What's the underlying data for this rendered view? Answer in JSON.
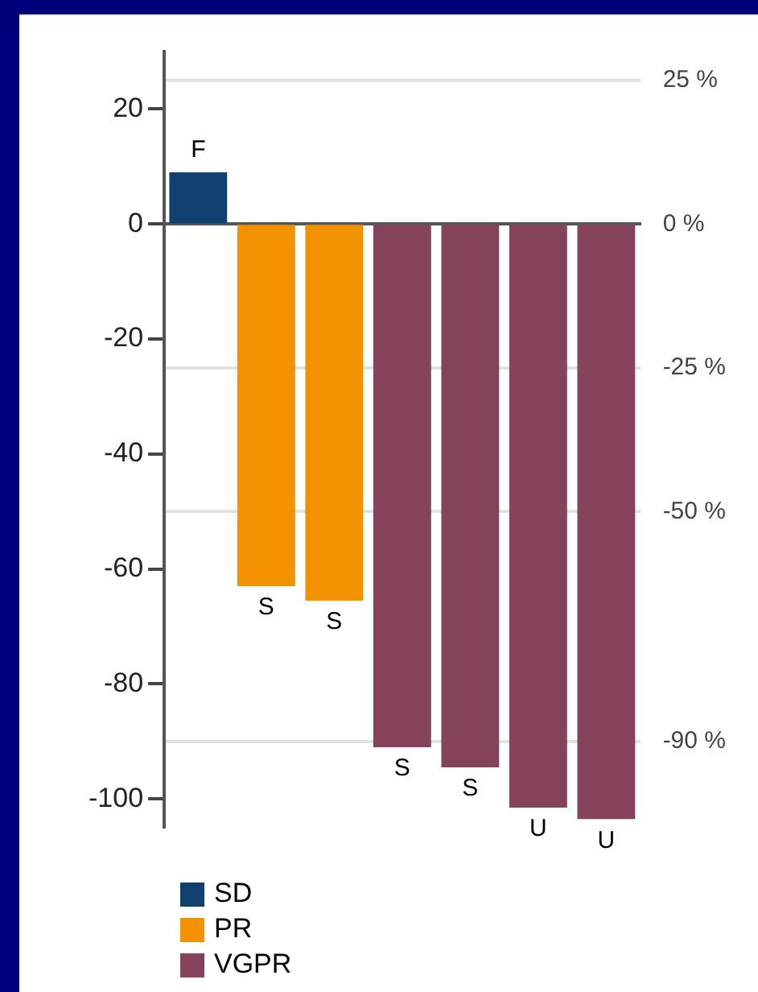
{
  "chart_data": {
    "type": "bar",
    "categories": [
      null,
      null,
      null,
      null,
      null,
      null,
      null
    ],
    "stacked": true,
    "series": [
      {
        "name": "SD",
        "color": "#0f406f",
        "values": [
          9,
          null,
          null,
          null,
          null,
          null,
          null
        ],
        "value_labels": [
          "F",
          null,
          null,
          null,
          null,
          null,
          null
        ]
      },
      {
        "name": "PR",
        "color": "#f39200",
        "values": [
          null,
          -63,
          -65.5,
          null,
          null,
          null,
          null
        ],
        "value_labels": [
          null,
          "S",
          "S",
          null,
          null,
          null,
          null
        ]
      },
      {
        "name": "VGPR",
        "color": "#84435b",
        "values": [
          null,
          null,
          null,
          -91,
          -94.5,
          -101.5,
          -103.5
        ],
        "value_labels": [
          null,
          null,
          null,
          "S",
          "S",
          "U",
          "U"
        ]
      }
    ],
    "ylim": [
      -105,
      30
    ],
    "yticks": [
      20,
      0,
      -20,
      -40,
      -60,
      -80,
      -100
    ],
    "y2lim": [
      -105,
      30
    ],
    "y2ticks": [
      {
        "value": 25,
        "label": "25 %"
      },
      {
        "value": 0,
        "label": "0 %"
      },
      {
        "value": -25,
        "label": "-25 %"
      },
      {
        "value": -50,
        "label": "-50 %"
      },
      {
        "value": -90,
        "label": "-90 %"
      }
    ],
    "grid": "y",
    "legend": "bottom left"
  }
}
